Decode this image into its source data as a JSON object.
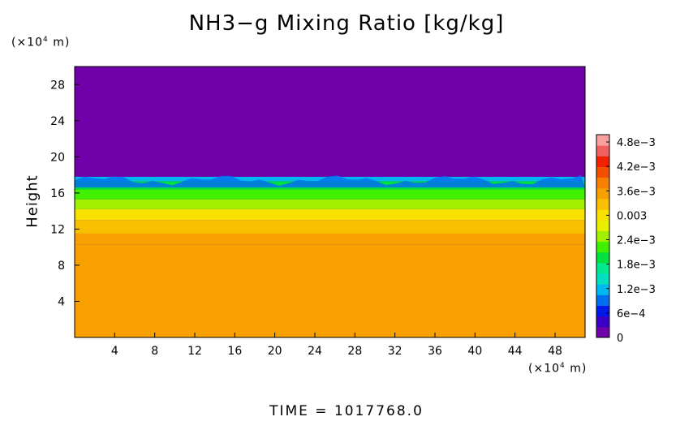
{
  "chart_data": {
    "type": "heatmap",
    "title": "NH3−g Mixing Ratio [kg/kg]",
    "ylabel": "Height",
    "y_unit_prefix": "(×10",
    "y_unit_exp": "4",
    "y_unit_suffix": " m)",
    "x_unit_prefix": "(×10",
    "x_unit_exp": "4",
    "x_unit_suffix": " m)",
    "xlim": [
      0,
      51
    ],
    "ylim": [
      0,
      30
    ],
    "x_ticks": [
      "4",
      "8",
      "12",
      "16",
      "20",
      "24",
      "28",
      "32",
      "36",
      "40",
      "44",
      "48"
    ],
    "y_ticks": [
      "4",
      "8",
      "12",
      "16",
      "20",
      "24",
      "28"
    ],
    "colorbar": {
      "range": [
        0,
        0.005
      ],
      "labels": [
        "0",
        "6e−4",
        "1.2e−3",
        "1.8e−3",
        "2.4e−3",
        "0.003",
        "3.6e−3",
        "4.2e−3",
        "4.8e−3"
      ],
      "colors": [
        "#7000a8",
        "#3a00c8",
        "#0018e8",
        "#0070f0",
        "#00b8f0",
        "#00e0c0",
        "#00e890",
        "#00e040",
        "#40f000",
        "#a0f000",
        "#e8f000",
        "#f8e000",
        "#f8c000",
        "#f8a000",
        "#f88000",
        "#f05000",
        "#f02000",
        "#f06060",
        "#f8a0a0"
      ]
    },
    "profile": [
      {
        "z": 0,
        "value": 0.00366
      },
      {
        "z": 9.7,
        "value": 0.00366
      },
      {
        "z": 10.3,
        "value": 0.0035
      },
      {
        "z": 11.5,
        "value": 0.0033
      },
      {
        "z": 13.0,
        "value": 0.00295
      },
      {
        "z": 14.2,
        "value": 0.0025
      },
      {
        "z": 15.3,
        "value": 0.0022
      },
      {
        "z": 16.4,
        "value": 0.0019
      },
      {
        "z": 17.3,
        "value": 0.0011
      },
      {
        "z": 17.8,
        "value": 0.0002
      },
      {
        "z": 30,
        "value": 0.0
      }
    ],
    "time_label": "TIME = 1017768.0"
  }
}
